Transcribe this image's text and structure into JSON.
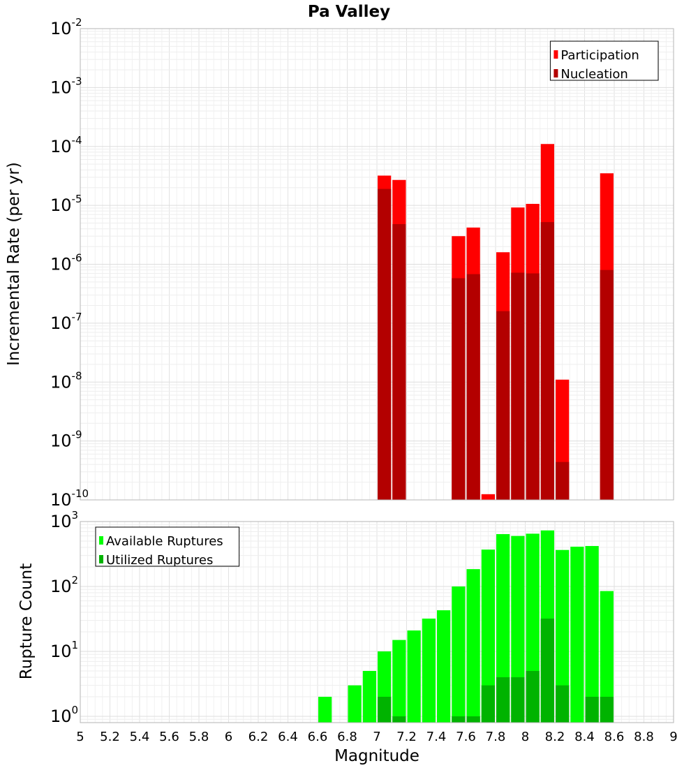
{
  "chart_data": [
    {
      "type": "bar",
      "title": "Pa Valley",
      "xlabel": "",
      "ylabel": "Incremental Rate (per yr)",
      "y_scale": "log",
      "ylim": [
        1e-10,
        0.01
      ],
      "y_tick_exponents": [
        -2,
        -3,
        -4,
        -5,
        -6,
        -7,
        -8,
        -9,
        -10
      ],
      "xlim": [
        5,
        9
      ],
      "bar_width": 0.1,
      "x": [
        7.05,
        7.15,
        7.55,
        7.65,
        7.75,
        7.85,
        7.95,
        8.05,
        8.15,
        8.25,
        8.55
      ],
      "legend_position": "top-right",
      "series": [
        {
          "name": "Participation",
          "color": "#ff0000",
          "values": [
            3.2e-05,
            2.7e-05,
            3e-06,
            4.2e-06,
            1.25e-10,
            1.6e-06,
            9.2e-06,
            1.06e-05,
            0.00011,
            1.1e-08,
            3.5e-05
          ]
        },
        {
          "name": "Nucleation",
          "color": "#b30000",
          "values": [
            1.9e-05,
            4.8e-06,
            5.8e-07,
            6.8e-07,
            null,
            1.6e-07,
            7.2e-07,
            7e-07,
            5.2e-06,
            4.4e-10,
            8e-07
          ]
        }
      ]
    },
    {
      "type": "bar",
      "title": "",
      "xlabel": "Magnitude",
      "ylabel": "Rupture Count",
      "y_scale": "log",
      "ylim": [
        0.8,
        1000
      ],
      "y_tick_exponents": [
        3,
        2,
        1,
        0
      ],
      "xlim": [
        5,
        9
      ],
      "x_ticks": [
        "5",
        "5.2",
        "5.4",
        "5.6",
        "5.8",
        "6",
        "6.2",
        "6.4",
        "6.6",
        "6.8",
        "7",
        "7.2",
        "7.4",
        "7.6",
        "7.8",
        "8",
        "8.2",
        "8.4",
        "8.6",
        "8.8",
        "9"
      ],
      "bar_width": 0.1,
      "x": [
        6.65,
        6.85,
        6.95,
        7.05,
        7.15,
        7.25,
        7.35,
        7.45,
        7.55,
        7.65,
        7.75,
        7.85,
        7.95,
        8.05,
        8.15,
        8.25,
        8.35,
        8.45,
        8.55
      ],
      "legend_position": "top-left",
      "series": [
        {
          "name": "Available Ruptures",
          "color": "#00ff00",
          "values": [
            2,
            3,
            5,
            10,
            15,
            21,
            32,
            43,
            100,
            185,
            370,
            640,
            600,
            650,
            730,
            365,
            410,
            420,
            85
          ]
        },
        {
          "name": "Utilized Ruptures",
          "color": "#00b300",
          "values": [
            null,
            null,
            null,
            2,
            1,
            null,
            null,
            null,
            1,
            1,
            3,
            4,
            4,
            5,
            32,
            3,
            null,
            2,
            2
          ]
        }
      ]
    }
  ]
}
